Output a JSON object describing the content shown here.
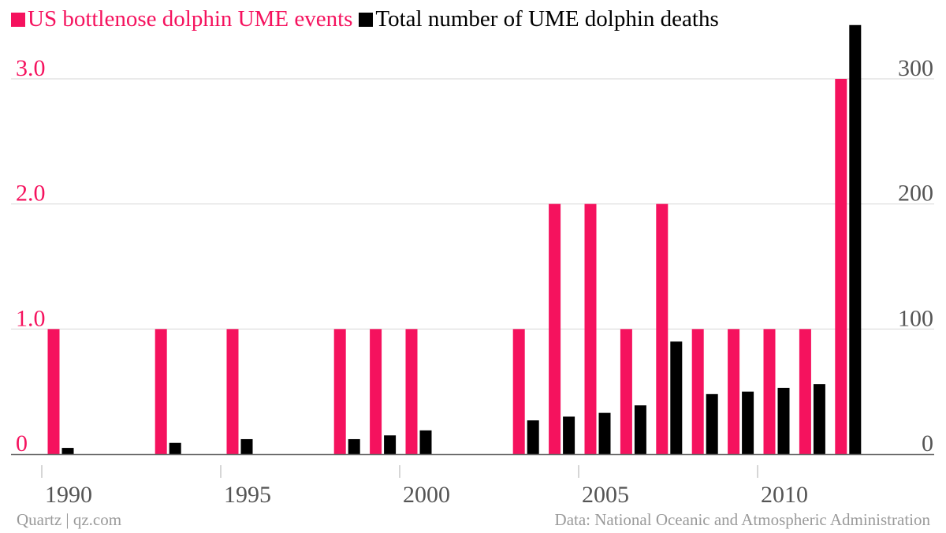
{
  "legend": {
    "events_label": "US bottlenose dolphin UME events",
    "deaths_label": "Total number of UME dolphin deaths"
  },
  "footer": {
    "source_left": "Quartz | qz.com",
    "source_right": "Data: National Oceanic and Atmospheric Administration"
  },
  "colors": {
    "events": "#f5125e",
    "deaths": "#000000",
    "grid": "#dddddd",
    "axis_text": "#555555"
  },
  "chart_data": {
    "type": "bar",
    "x": [
      1990,
      1991,
      1992,
      1993,
      1994,
      1995,
      1996,
      1997,
      1998,
      1999,
      2000,
      2001,
      2002,
      2003,
      2004,
      2005,
      2006,
      2007,
      2008,
      2009,
      2010,
      2011,
      2012,
      2013
    ],
    "series": [
      {
        "name": "US bottlenose dolphin UME events",
        "axis": "left",
        "values": [
          1,
          0,
          0,
          1,
          0,
          1,
          0,
          0,
          1,
          1,
          1,
          0,
          0,
          1,
          2,
          2,
          1,
          2,
          1,
          1,
          1,
          1,
          3,
          0
        ]
      },
      {
        "name": "Total number of UME dolphin deaths",
        "axis": "right",
        "values": [
          5,
          0,
          0,
          9,
          0,
          12,
          0,
          0,
          12,
          15,
          19,
          0,
          0,
          27,
          30,
          33,
          39,
          90,
          48,
          50,
          53,
          56,
          343,
          0
        ]
      }
    ],
    "x_ticks": [
      1990,
      1995,
      2000,
      2005,
      2010
    ],
    "x_tick_labels": [
      "1990",
      "1995",
      "2000",
      "2005",
      "2010"
    ],
    "y_left": {
      "range": [
        0,
        3.0
      ],
      "ticks": [
        0,
        1.0,
        2.0,
        3.0
      ],
      "tick_labels": [
        "0",
        "1.0",
        "2.0",
        "3.0"
      ]
    },
    "y_right": {
      "range": [
        0,
        300
      ],
      "ticks": [
        0,
        100,
        200,
        300
      ],
      "tick_labels": [
        "0",
        "100",
        "200",
        "300"
      ]
    },
    "grid": true,
    "legend_position": "top-left"
  }
}
